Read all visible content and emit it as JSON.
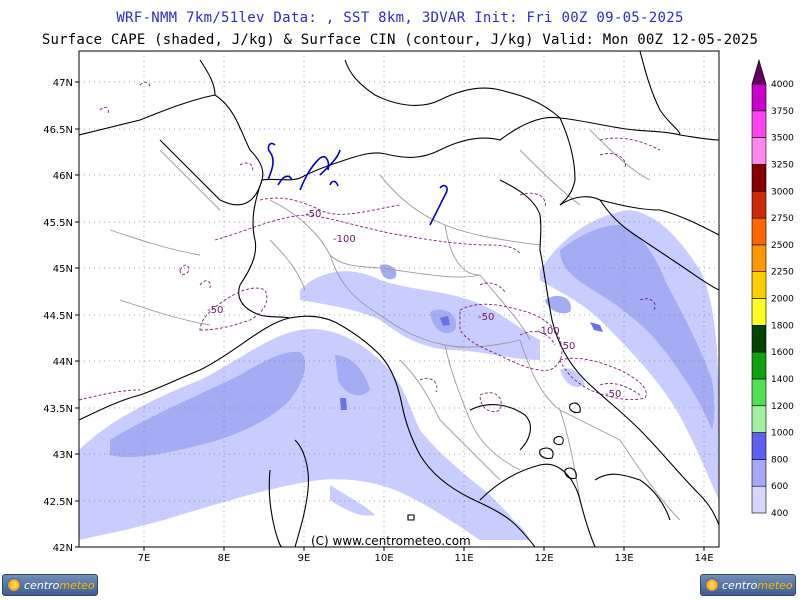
{
  "header": {
    "line1": "WRF-NMM 7km/51lev  Data: , SST 8km, 3DVAR  Init: Fri 00Z 09-05-2025",
    "line2": "Surface CAPE (shaded, J/kg) & Surface CIN (contour, J/kg)  Valid: Mon 00Z 12-05-2025"
  },
  "map": {
    "lat_labels": [
      "47N",
      "46.5N",
      "46N",
      "45.5N",
      "45N",
      "44.5N",
      "44N",
      "43.5N",
      "43N",
      "42.5N",
      "42N"
    ],
    "lon_labels": [
      "7E",
      "8E",
      "9E",
      "10E",
      "11E",
      "12E",
      "13E",
      "14E"
    ],
    "lat_range": [
      42,
      47.25
    ],
    "lon_range": [
      6.3,
      14.2
    ],
    "cin_contour_labels": [
      "-50",
      "-100",
      "-50",
      "-50",
      "-100",
      "-50",
      "-50"
    ],
    "copyright": "(C) www.centrometeo.com",
    "colors": {
      "cape_400": "#c8ccff",
      "cape_600": "#9ea8f4",
      "cin_contour": "#7a1f7a",
      "lakes": "#0000cc"
    }
  },
  "colorbar": {
    "labels": [
      "400",
      "600",
      "800",
      "1000",
      "1200",
      "1400",
      "1600",
      "1800",
      "2000",
      "2250",
      "2500",
      "2750",
      "3000",
      "3250",
      "3500",
      "3750",
      "4000"
    ],
    "colors": [
      "#d6d6ff",
      "#a8a8f8",
      "#6060ee",
      "#a0f0a0",
      "#50e050",
      "#10a010",
      "#004400",
      "#ffff20",
      "#ffcc00",
      "#ff9900",
      "#ff6600",
      "#cc2a00",
      "#880000",
      "#ff88ee",
      "#ff44ee",
      "#cc00cc",
      "#660066"
    ]
  },
  "logos": {
    "left_text_a": "centro",
    "left_text_b": "meteo",
    "right_text_a": "centro",
    "right_text_b": "meteo"
  }
}
